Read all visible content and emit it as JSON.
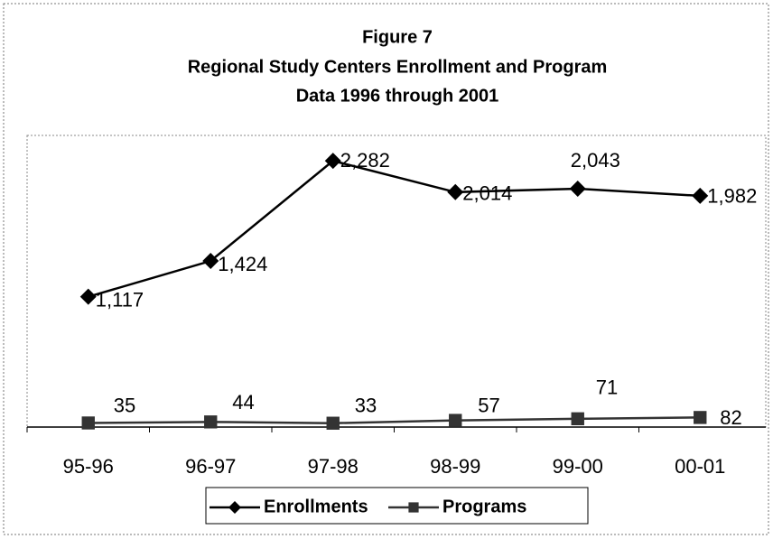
{
  "chart_data": {
    "type": "line",
    "title": [
      "Figure 7",
      "Regional Study Centers Enrollment and Program",
      "Data 1996 through 2001"
    ],
    "categories": [
      "95-96",
      "96-97",
      "97-98",
      "98-99",
      "99-00",
      "00-01"
    ],
    "series": [
      {
        "name": "Enrollments",
        "color": "#000000",
        "marker": "diamond",
        "values": [
          1117,
          1424,
          2282,
          2014,
          2043,
          1982
        ],
        "value_labels": [
          "1,117",
          "1,424",
          "2,282",
          "2,014",
          "2,043",
          "1,982"
        ]
      },
      {
        "name": "Programs",
        "color": "#333333",
        "marker": "square",
        "values": [
          35,
          44,
          33,
          57,
          71,
          82
        ]
      }
    ],
    "ylim": [
      0,
      2500
    ],
    "grid": false,
    "legend": "bottom"
  }
}
